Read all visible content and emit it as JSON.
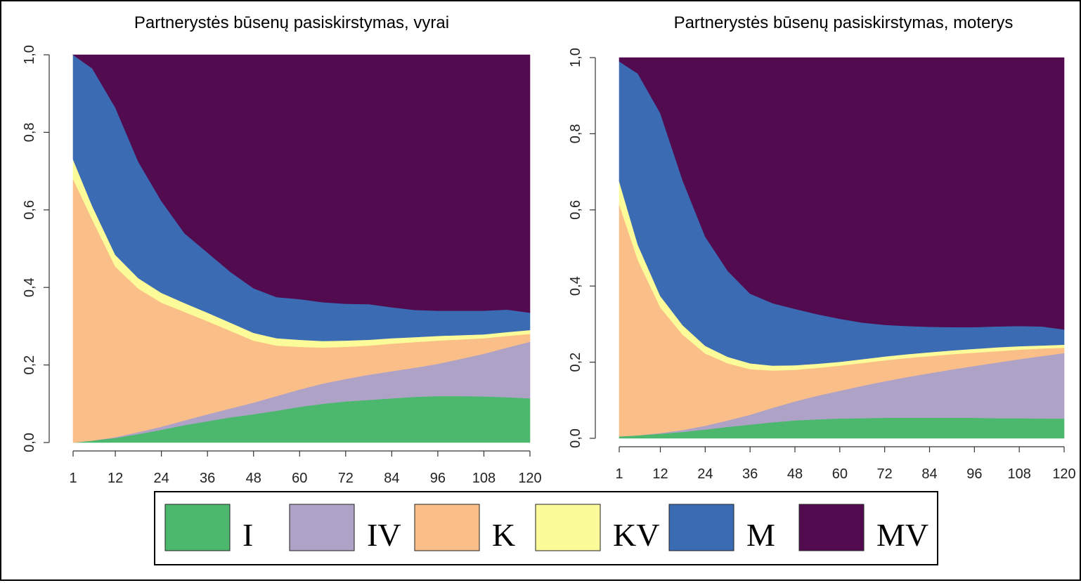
{
  "colors": {
    "I": "#4bb86d",
    "IV": "#afa2c7",
    "K": "#fabf88",
    "KV": "#fcfb9a",
    "M": "#3b6cb3",
    "MV": "#530b50"
  },
  "legend": {
    "items": [
      {
        "key": "I",
        "label": "I"
      },
      {
        "key": "IV",
        "label": "IV"
      },
      {
        "key": "K",
        "label": "K"
      },
      {
        "key": "KV",
        "label": "KV"
      },
      {
        "key": "M",
        "label": "M"
      },
      {
        "key": "MV",
        "label": "MV"
      }
    ]
  },
  "chart_data": [
    {
      "type": "area",
      "title": "Partnerystės būsenų pasiskirstymas, vyrai",
      "xlabel": "",
      "ylabel": "",
      "x_ticks": [
        "1",
        "12",
        "24",
        "36",
        "48",
        "60",
        "72",
        "84",
        "96",
        "108",
        "120"
      ],
      "y_ticks": [
        "0,0",
        "0,2",
        "0,4",
        "0,6",
        "0,8",
        "1,0"
      ],
      "xlim": [
        1,
        120
      ],
      "ylim": [
        0,
        1
      ],
      "stacked": true,
      "x": [
        1,
        6,
        12,
        18,
        24,
        30,
        36,
        42,
        48,
        54,
        60,
        66,
        72,
        78,
        84,
        90,
        96,
        102,
        108,
        114,
        120
      ],
      "series": [
        {
          "name": "I",
          "values": [
            0.0,
            0.005,
            0.012,
            0.022,
            0.033,
            0.045,
            0.055,
            0.065,
            0.073,
            0.082,
            0.092,
            0.1,
            0.106,
            0.11,
            0.114,
            0.118,
            0.12,
            0.12,
            0.119,
            0.117,
            0.114
          ]
        },
        {
          "name": "IV",
          "values": [
            0.0,
            0.0,
            0.002,
            0.005,
            0.008,
            0.012,
            0.018,
            0.023,
            0.03,
            0.038,
            0.045,
            0.052,
            0.058,
            0.065,
            0.07,
            0.075,
            0.083,
            0.096,
            0.11,
            0.128,
            0.146
          ]
        },
        {
          "name": "K",
          "values": [
            0.68,
            0.57,
            0.44,
            0.37,
            0.32,
            0.28,
            0.24,
            0.2,
            0.16,
            0.13,
            0.11,
            0.093,
            0.083,
            0.075,
            0.071,
            0.066,
            0.06,
            0.05,
            0.04,
            0.03,
            0.02
          ]
        },
        {
          "name": "KV",
          "values": [
            0.05,
            0.035,
            0.03,
            0.027,
            0.025,
            0.023,
            0.022,
            0.021,
            0.02,
            0.019,
            0.018,
            0.017,
            0.016,
            0.015,
            0.014,
            0.013,
            0.012,
            0.011,
            0.01,
            0.01,
            0.01
          ]
        },
        {
          "name": "M",
          "values": [
            0.27,
            0.355,
            0.38,
            0.3,
            0.237,
            0.18,
            0.155,
            0.131,
            0.115,
            0.106,
            0.105,
            0.1,
            0.095,
            0.092,
            0.08,
            0.07,
            0.065,
            0.063,
            0.061,
            0.058,
            0.045
          ]
        },
        {
          "name": "MV",
          "values": [
            0.0,
            0.035,
            0.136,
            0.276,
            0.377,
            0.46,
            0.51,
            0.56,
            0.602,
            0.625,
            0.63,
            0.638,
            0.642,
            0.643,
            0.651,
            0.658,
            0.66,
            0.66,
            0.66,
            0.657,
            0.665
          ]
        }
      ]
    },
    {
      "type": "area",
      "title": "Partnerystės būsenų pasiskirstymas, moterys",
      "xlabel": "",
      "ylabel": "",
      "x_ticks": [
        "1",
        "12",
        "24",
        "36",
        "48",
        "60",
        "72",
        "84",
        "96",
        "108",
        "120"
      ],
      "y_ticks": [
        "0,0",
        "0,2",
        "0,4",
        "0,6",
        "0,8",
        "1,0"
      ],
      "xlim": [
        1,
        120
      ],
      "ylim": [
        0,
        1
      ],
      "stacked": true,
      "x": [
        1,
        6,
        12,
        18,
        24,
        30,
        36,
        42,
        48,
        54,
        60,
        66,
        72,
        78,
        84,
        90,
        96,
        102,
        108,
        114,
        120
      ],
      "series": [
        {
          "name": "I",
          "values": [
            0.005,
            0.008,
            0.012,
            0.017,
            0.023,
            0.03,
            0.036,
            0.042,
            0.047,
            0.05,
            0.052,
            0.053,
            0.054,
            0.054,
            0.054,
            0.054,
            0.054,
            0.053,
            0.053,
            0.052,
            0.052
          ]
        },
        {
          "name": "IV",
          "values": [
            0.0,
            0.0,
            0.002,
            0.005,
            0.01,
            0.017,
            0.026,
            0.038,
            0.05,
            0.062,
            0.073,
            0.085,
            0.096,
            0.107,
            0.117,
            0.127,
            0.136,
            0.146,
            0.155,
            0.164,
            0.172
          ]
        },
        {
          "name": "K",
          "values": [
            0.61,
            0.46,
            0.33,
            0.25,
            0.19,
            0.15,
            0.12,
            0.098,
            0.083,
            0.073,
            0.066,
            0.06,
            0.055,
            0.05,
            0.045,
            0.04,
            0.035,
            0.03,
            0.025,
            0.02,
            0.014
          ]
        },
        {
          "name": "KV",
          "values": [
            0.06,
            0.04,
            0.03,
            0.025,
            0.02,
            0.017,
            0.015,
            0.013,
            0.012,
            0.011,
            0.01,
            0.01,
            0.01,
            0.01,
            0.01,
            0.01,
            0.01,
            0.01,
            0.009,
            0.008,
            0.008
          ]
        },
        {
          "name": "M",
          "values": [
            0.315,
            0.45,
            0.48,
            0.38,
            0.287,
            0.226,
            0.183,
            0.164,
            0.148,
            0.13,
            0.113,
            0.096,
            0.083,
            0.074,
            0.067,
            0.061,
            0.057,
            0.055,
            0.053,
            0.05,
            0.04
          ]
        },
        {
          "name": "MV",
          "values": [
            0.01,
            0.042,
            0.146,
            0.323,
            0.47,
            0.56,
            0.62,
            0.645,
            0.66,
            0.674,
            0.686,
            0.696,
            0.702,
            0.705,
            0.707,
            0.708,
            0.708,
            0.706,
            0.705,
            0.706,
            0.714
          ]
        }
      ]
    }
  ]
}
